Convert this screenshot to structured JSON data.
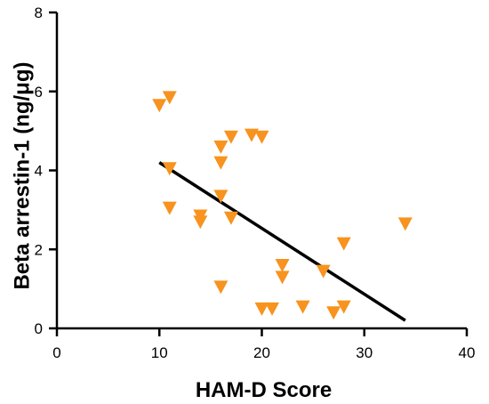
{
  "chart_data": {
    "type": "scatter",
    "title": "",
    "xlabel": "HAM-D Score",
    "ylabel": "Beta arrestin-1 (ng/μg)",
    "xlim": [
      0,
      40
    ],
    "ylim": [
      0,
      8
    ],
    "xticks": [
      "0",
      "10",
      "20",
      "30",
      "40"
    ],
    "yticks": [
      "0",
      "2",
      "4",
      "6",
      "8"
    ],
    "grid": false,
    "legend": "none",
    "marker": "triangle-down",
    "marker_color": "#F7931E",
    "line_color": "#000000",
    "points": [
      {
        "x": 10,
        "y": 5.65
      },
      {
        "x": 11,
        "y": 5.85
      },
      {
        "x": 11,
        "y": 4.05
      },
      {
        "x": 11,
        "y": 3.05
      },
      {
        "x": 14,
        "y": 2.85
      },
      {
        "x": 14,
        "y": 2.7
      },
      {
        "x": 16,
        "y": 4.6
      },
      {
        "x": 16,
        "y": 4.2
      },
      {
        "x": 16,
        "y": 3.35
      },
      {
        "x": 16,
        "y": 1.05
      },
      {
        "x": 17,
        "y": 4.85
      },
      {
        "x": 17,
        "y": 2.8
      },
      {
        "x": 19,
        "y": 4.9
      },
      {
        "x": 20,
        "y": 4.85
      },
      {
        "x": 20,
        "y": 0.5
      },
      {
        "x": 21,
        "y": 0.5
      },
      {
        "x": 22,
        "y": 1.6
      },
      {
        "x": 22,
        "y": 1.3
      },
      {
        "x": 24,
        "y": 0.55
      },
      {
        "x": 26,
        "y": 1.45
      },
      {
        "x": 27,
        "y": 0.4
      },
      {
        "x": 28,
        "y": 2.15
      },
      {
        "x": 28,
        "y": 0.55
      },
      {
        "x": 34,
        "y": 2.65
      }
    ],
    "regression_line": {
      "x": [
        10,
        34
      ],
      "y": [
        4.2,
        0.2
      ]
    }
  }
}
